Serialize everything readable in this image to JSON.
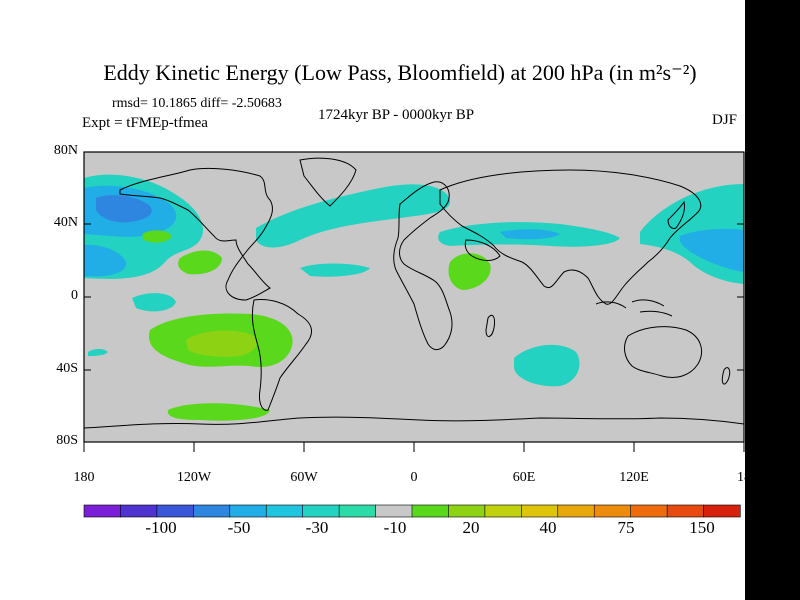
{
  "plot": {
    "title": "Eddy Kinetic Energy (Low Pass, Bloomfield) at 200 hPa (in m²s⁻²)",
    "stats": "rmsd= 10.1865 diff= -2.50683",
    "experiment": "Expt = tFMEp-tfmea",
    "period": "1724kyr BP - 0000kyr BP",
    "season": "DJF"
  },
  "axes": {
    "lat_labels": [
      "80N",
      "40N",
      "0",
      "40S",
      "80S"
    ],
    "lon_labels": [
      "180",
      "120W",
      "60W",
      "0",
      "60E",
      "120E",
      "18"
    ]
  },
  "colorbar": {
    "labels": [
      "-100",
      "-50",
      "-30",
      "-10",
      "20",
      "40",
      "75",
      "150"
    ],
    "colors": [
      "#7b1fd6",
      "#4e33cf",
      "#3a56d9",
      "#2f86e0",
      "#21aee6",
      "#1fc4dd",
      "#23d2c0",
      "#2bdca8",
      "#c8c8c8",
      "#5ad81c",
      "#8ed313",
      "#bfd20c",
      "#dfc50a",
      "#e8a80b",
      "#ec8c0c",
      "#ee6b0e",
      "#e64a0f",
      "#d8200f"
    ]
  },
  "colors": {
    "land_background": "#c8c8c8",
    "anomaly_teal": "#23d2c0",
    "anomaly_cyan": "#21aee6",
    "anomaly_blue": "#2f86e0",
    "anomaly_green": "#5ad81c",
    "anomaly_yellowgreen": "#8ed313"
  }
}
